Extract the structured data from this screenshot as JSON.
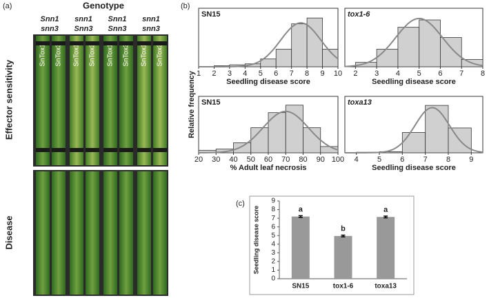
{
  "panel_labels": [
    "(a)",
    "(b)",
    "(c)"
  ],
  "photo": {
    "title": "Genotype",
    "genotypes": [
      [
        "Snn1",
        "snn3"
      ],
      [
        "snn1",
        "Snn3"
      ],
      [
        "Snn1",
        "Snn3"
      ],
      [
        "snn1",
        "snn3"
      ]
    ],
    "leaf_labels": [
      "SnTox1",
      "SnTox3"
    ],
    "row_labels": [
      "Effector sensitivity",
      "Disease"
    ]
  },
  "histogram_ylabel": "Relative frequency",
  "chart_data": [
    {
      "type": "histogram",
      "title": "SN15",
      "xlabel": "Seedling disease score",
      "bins": [
        2,
        3,
        4,
        5,
        6,
        7,
        8,
        9,
        10
      ],
      "values": [
        0.01,
        0.02,
        0.03,
        0.08,
        0.18,
        0.44,
        0.5,
        0.18
      ],
      "xlim": [
        1,
        10
      ],
      "xticks": [
        1,
        2,
        3,
        4,
        5,
        6,
        7,
        8,
        9,
        10
      ],
      "ylim": [
        0,
        0.6
      ],
      "color": "#d0d0d0",
      "fit": {
        "mean": 7.6,
        "sd": 1.3,
        "peak": 0.45,
        "color": "#888888"
      }
    },
    {
      "type": "histogram",
      "title": "tox1-6",
      "xlabel": "Seedling disease score",
      "bins": [
        2,
        3,
        4,
        5,
        6,
        7,
        8
      ],
      "values": [
        0.03,
        0.12,
        0.27,
        0.32,
        0.2,
        0.05
      ],
      "xlim": [
        1.5,
        8
      ],
      "xticks": [
        2,
        3,
        4,
        5,
        6,
        7,
        8
      ],
      "ylim": [
        0,
        0.4
      ],
      "color": "#d0d0d0",
      "fit": {
        "mean": 5,
        "sd": 1.1,
        "peak": 0.33,
        "color": "#888888"
      }
    },
    {
      "type": "histogram",
      "title": "SN15",
      "xlabel": "% Adult leaf necrosis",
      "bins": [
        20,
        30,
        40,
        50,
        60,
        70,
        80,
        90,
        100
      ],
      "values": [
        0.02,
        0.03,
        0.08,
        0.2,
        0.32,
        0.38,
        0.2,
        0.05
      ],
      "xlim": [
        20,
        100
      ],
      "xticks": [
        20,
        30,
        40,
        50,
        60,
        70,
        80,
        90,
        100
      ],
      "ylim": [
        0,
        0.45
      ],
      "color": "#d0d0d0",
      "fit": {
        "mean": 70,
        "sd": 13,
        "peak": 0.33,
        "color": "#888888"
      }
    },
    {
      "type": "histogram",
      "title": "toxa13",
      "xlabel": "Seedling disease score",
      "bins": [
        4,
        5,
        6,
        7,
        8,
        9
      ],
      "values": [
        0.005,
        0.01,
        0.18,
        0.42,
        0.22
      ],
      "xlim": [
        3.5,
        9.5
      ],
      "xticks": [
        4,
        5,
        6,
        7,
        8,
        9
      ],
      "ylim": [
        0,
        0.5
      ],
      "color": "#d0d0d0",
      "fit": {
        "mean": 7.3,
        "sd": 0.75,
        "peak": 0.4,
        "color": "#888888"
      }
    },
    {
      "type": "bar",
      "ylabel": "Seedling disease score",
      "categories": [
        "SN15",
        "tox1-6",
        "toxa13"
      ],
      "values": [
        7.2,
        4.95,
        7.15
      ],
      "errors": [
        0.1,
        0.1,
        0.1
      ],
      "letters": [
        "a",
        "b",
        "a"
      ],
      "ylim": [
        0,
        9
      ],
      "yticks": [
        0,
        1,
        2,
        3,
        4,
        5,
        6,
        7,
        8,
        9
      ],
      "color": "#999999"
    }
  ]
}
